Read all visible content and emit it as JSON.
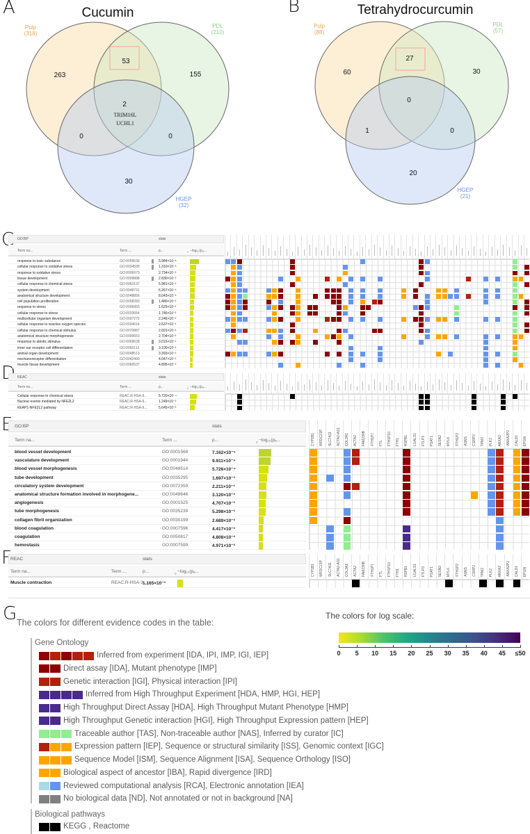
{
  "panel_labels": {
    "a": "A",
    "b": "B",
    "c": "C",
    "d": "D",
    "e": "E",
    "f": "F",
    "g": "G"
  },
  "venn_a": {
    "title": "Cucumin",
    "sets": {
      "pulp": "Pulp",
      "pulp_n": "(318)",
      "pdl": "PDL",
      "pdl_n": "(210)",
      "hgep": "HGEP",
      "hgep_n": "(32)"
    },
    "regions": {
      "pulp_only": "263",
      "pdl_only": "155",
      "hgep_only": "30",
      "pulp_pdl": "53",
      "pulp_hgep": "0",
      "pdl_hgep": "0",
      "all": "2"
    },
    "all_genes": [
      "TRIM16L",
      "UCHL1"
    ]
  },
  "venn_b": {
    "title": "Tetrahydrocurcumin",
    "sets": {
      "pulp": "Pulp",
      "pulp_n": "(88)",
      "pdl": "PDL",
      "pdl_n": "(57)",
      "hgep": "HGEP",
      "hgep_n": "(21)"
    },
    "regions": {
      "pulp_only": "60",
      "pdl_only": "30",
      "hgep_only": "20",
      "pulp_pdl": "27",
      "pulp_hgep": "1",
      "pdl_hgep": "0",
      "all": "0"
    }
  },
  "table_headers": {
    "term_name": "Term na...",
    "term_id": "Term ...",
    "p": "p...",
    "neglog": "−log₁₀(pₐ...",
    "stats": "stats",
    "zero": "0"
  },
  "colors": {
    "r": "#8b0000",
    "R": "#b3200e",
    "o": "#ffa500",
    "b": "#6495ed",
    "g": "#90ee90",
    "p": "#4a2a8c",
    "lb": "#add8e6",
    "gr": "#808080",
    "k": "#000000"
  },
  "panel_c": {
    "source": "GO:BP",
    "rows": [
      {
        "term": "response to toxic substance",
        "id": "GO:0009636",
        "p": "5.984×10⁻⁵",
        "pv": 5.984e-05,
        "marker": true,
        "cells": "0b 1b 2r 11r 23b 33r 34b 49g"
      },
      {
        "term": "cellular response to oxidative stress",
        "id": "GO:0034599",
        "p": "1.310×10⁻³",
        "pv": 0.00131,
        "marker": true,
        "cells": "1o 2b 11r 20b 33r 49g 51r"
      },
      {
        "term": "response to oxidative stress",
        "id": "GO:0006979",
        "p": "2.734×10⁻³",
        "pv": 0.002734,
        "marker": false,
        "cells": "1o 2b 11r 20o 33r 34b 49r 51r"
      },
      {
        "term": "tissue development",
        "id": "GO:0009888",
        "p": "2.830×10⁻³",
        "pv": 0.00283,
        "marker": true,
        "cells": "0r 1o 2b 9b 12o 17R 19o 21b 23b 26b 34b 41R 44b 46b 49o 50o"
      },
      {
        "term": "cellular response to chemical stress",
        "id": "GO:0062197",
        "p": "5.981×10⁻³",
        "pv": 0.005981,
        "marker": false,
        "cells": "1o 2b 11r 20b 33r 49g 51r"
      },
      {
        "term": "system development",
        "id": "GO:0048731",
        "p": "6.267×10⁻³",
        "pv": 0.006267,
        "marker": false,
        "cells": "0b 1o 2b 3b 7b 8o 9r 12o 17r 18r 19r 21b 23b 26b 30o 32r 36o 37o 39b 44b 46b 49g"
      },
      {
        "term": "anatomical structure development",
        "id": "GO:0048856",
        "p": "8.043×10⁻³",
        "pv": 0.008043,
        "marker": false,
        "cells": "0r 1o 2b 3g 7o 8o 9r 12o 15r 17r 18r 19r 21b 23b 26b 30o 32r 34b 36o 37o 38b 39b 41R 44b 46b 49g 50o"
      },
      {
        "term": "cell population proliferation",
        "id": "GO:0008283",
        "p": "1.480×10⁻²",
        "pv": 0.0148,
        "marker": true,
        "cells": "0r 1o 2b 3r 7r 9b 12o 18r 19r 21b 23o 25R 26r 34b 44b 49g 51r"
      },
      {
        "term": "response to stress",
        "id": "GO:0006950",
        "p": "1.629×10⁻²",
        "pv": 0.01629,
        "marker": false,
        "cells": "0r 1o 2b 3r 7b 8o 9r 11r 12o 14r 15r 19r 20o 23r 24r 32b 33r 34b 39g 49r 51r"
      },
      {
        "term": "cellular response to stress",
        "id": "GO:0033554",
        "p": "1.746×10⁻²",
        "pv": 0.01746,
        "marker": false,
        "cells": "1o 2b 8o 11r 12o 14r 15r 19r 20b 23r 33r 39g 49g 51r"
      },
      {
        "term": "multicellular organism development",
        "id": "GO:0007275",
        "p": "2.246×10⁻²",
        "pv": 0.02246,
        "marker": false,
        "cells": "0b 1o 2b 3b 7b 8o 9r 12o 17R 18r 19r 21b 23b 26b 30o 32r 33r 34b 36o 37o 39b 44b 46b 49g"
      },
      {
        "term": "cellular response to reactive oxygen species",
        "id": "GO:0034614",
        "p": "2.637×10⁻²",
        "pv": 0.02637,
        "marker": false,
        "cells": "1o 11r 33r 49g 51r"
      },
      {
        "term": "cellular response to chemical stimulus",
        "id": "GO:0070887",
        "p": "2.691×10⁻²",
        "pv": 0.02691,
        "marker": false,
        "cells": "0b 1r 2b 3R 7o 8o 9b 11r 15o 19r 20b 25r 26r 33r 34b 49g 51r"
      },
      {
        "term": "anatomical structure morphogenesis",
        "id": "GO:0009653",
        "p": "2.704×10⁻²",
        "pv": 0.02704,
        "marker": false,
        "cells": "1o 7b 9b 12o 17o 18r 19o 21b 30o 34b 36o 37o 39b 44b 46b 49o 50o"
      },
      {
        "term": "response to abiotic stimulus",
        "id": "GO:0009628",
        "p": "3.015×10⁻²",
        "pv": 0.03015,
        "marker": true,
        "cells": "2b 3b 8o 9r 11r 12o 15r 19r 33b 44b 49o"
      },
      {
        "term": "inner ear receptor cell differentiation",
        "id": "GO:0060113",
        "p": "3.100×10⁻²",
        "pv": 0.031,
        "marker": true,
        "cells": "21b 26b 44b 49o"
      },
      {
        "term": "animal organ development",
        "id": "GO:0048513",
        "p": "3.393×10⁻²",
        "pv": 0.03393,
        "marker": false,
        "cells": "0r 1o 2b 3b 7b 8o 9r 17r 19r 21b 23b 26b 36o 38b 44b 46b 49g"
      },
      {
        "term": "mechanoreceptor differentiation",
        "id": "GO:0042490",
        "p": "4.047×10⁻²",
        "pv": 0.04047,
        "marker": false,
        "cells": "21b 26b 44b 49o"
      },
      {
        "term": "muscle tissue development",
        "id": "GO:0060537",
        "p": "4.895×10⁻²",
        "pv": 0.04895,
        "marker": false,
        "cells": "9b 12o 19b 23b 44b 46b 50o"
      }
    ]
  },
  "panel_d": {
    "source": "REAC",
    "rows": [
      {
        "term": "Cellular response to chemical stress",
        "id": "REAC:R-HSA-9...",
        "p": "5.720×10⁻⁴",
        "pv": 0.000572,
        "cells": "2k 11k 33k 34k 42k 47k 49k"
      },
      {
        "term": "Nuclear events mediated by NFE2L2",
        "id": "REAC:R-HSA-9...",
        "p": "1.249×10⁻³",
        "pv": 0.001249,
        "cells": "2k 33k 34k 42k 47k"
      },
      {
        "term": "KEAP1-NFE2L2 pathway",
        "id": "REAC:R-HSA-9...",
        "p": "5.645×10⁻³",
        "pv": 0.005645,
        "cells": "2k 33k 34k 42k 47k"
      }
    ]
  },
  "genes_ef": [
    "CYP1B1",
    "WFDC21P",
    "SLC7A11",
    "ACTA2-AS1",
    "COL3A1",
    "ACTA2",
    "FAM230B",
    "FTH1P7",
    "FTL",
    "FTH1P10",
    "FTH1",
    "HSPB1",
    "LGALS1",
    "FTLP3",
    "PSAT1",
    "SESN2",
    "MYL6",
    "FTH1P2",
    "ASNS",
    "CSRP2",
    "TPM2",
    "PLK2",
    "ANXA2",
    "ANXA2P2",
    "CALD1",
    "EPGN"
  ],
  "panel_e": {
    "source": "GO:BP",
    "rows": [
      {
        "term": "blood vessel development",
        "id": "GO:0001568",
        "p": "7.162×10⁻⁵",
        "pv": 7.162e-05,
        "cells": "0o 4b 5R 11r 21b 22R 24o 25r"
      },
      {
        "term": "vasculature development",
        "id": "GO:0001944",
        "p": "9.911×10⁻⁵",
        "pv": 9.911e-05,
        "cells": "0o 4b 5R 11r 21b 22R 24o 25r"
      },
      {
        "term": "blood vessel morphogenesis",
        "id": "GO:0048514",
        "p": "5.726×10⁻⁴",
        "pv": 0.0005726,
        "cells": "0o 4b 11r 21b 22R 24o 25r"
      },
      {
        "term": "tube development",
        "id": "GO:0035295",
        "p": "1.697×10⁻³",
        "pv": 0.001697,
        "cells": "0o 2b 4b 11r 21b 22R 24o 25r"
      },
      {
        "term": "circulatory system development",
        "id": "GO:0072359",
        "p": "2.211×10⁻³",
        "pv": 0.002211,
        "cells": "0o 4r 5R 11r 21b 22R 24o 25r"
      },
      {
        "term": "anatomical structure formation involved in morphogene...",
        "id": "GO:0048646",
        "p": "3.120×10⁻³",
        "pv": 0.00312,
        "cells": "0o 4b 11r 19o 21b 22R 24o 25r"
      },
      {
        "term": "angiogenesis",
        "id": "GO:0001525",
        "p": "4.707×10⁻³",
        "pv": 0.004707,
        "cells": "0o 11r 21b 22R 24o 25r"
      },
      {
        "term": "tube morphogenesis",
        "id": "GO:0035239",
        "p": "5.298×10⁻³",
        "pv": 0.005298,
        "cells": "0o 4b 11r 21b 22R 24o 25r"
      },
      {
        "term": "collagen fibril organization",
        "id": "GO:0030199",
        "p": "2.689×10⁻²",
        "pv": 0.02689,
        "cells": "0o 4r 22b"
      },
      {
        "term": "blood coagulation",
        "id": "GO:0007596",
        "p": "4.417×10⁻²",
        "pv": 0.04417,
        "cells": "2b 4g 11p 22b"
      },
      {
        "term": "coagulation",
        "id": "GO:0050817",
        "p": "4.808×10⁻²",
        "pv": 0.04808,
        "cells": "2b 4g 11p 22b"
      },
      {
        "term": "hemostasis",
        "id": "GO:0007599",
        "p": "4.971×10⁻²",
        "pv": 0.04971,
        "cells": "2b 4g 11p 22b"
      }
    ]
  },
  "panel_f": {
    "source": "REAC",
    "rows": [
      {
        "term": "Muscle contraction",
        "id": "REAC:R-HSA-3...",
        "p": "1.165×10⁻³",
        "pv": 0.001165,
        "cells": "5k 16k 20k 22k 24k"
      }
    ]
  },
  "legend": {
    "title": "The colors for different evidence codes in the table:",
    "go_heading": "Gene Ontology",
    "items": [
      {
        "swatches": [
          "r",
          "R",
          "r",
          "R",
          "R"
        ],
        "label": "Inferred from experiment [IDA, IPI, IMP, IGI, IEP]"
      },
      {
        "swatches": [
          "r",
          "r"
        ],
        "label": "Direct assay [IDA], Mutant phenotype [IMP]"
      },
      {
        "swatches": [
          "R",
          "R"
        ],
        "label": "Genetic interaction [IGI], Physical interaction [IPI]"
      },
      {
        "swatches": [
          "p",
          "p",
          "p",
          "p"
        ],
        "label": "Inferred from High Throughput Experiment [HDA, HMP, HGI, HEP]"
      },
      {
        "swatches": [
          "p",
          "p"
        ],
        "label": "High Throughput Direct Assay [HDA], High Throughput Mutant Phenotype [HMP]"
      },
      {
        "swatches": [
          "p",
          "p"
        ],
        "label": "High Throughput Genetic interaction [HGI], High Throughput Expression pattern [HEP]"
      },
      {
        "swatches": [
          "g",
          "g",
          "g"
        ],
        "label": "Traceable author [TAS], Non-traceable author [NAS], Inferred by curator [IC]"
      },
      {
        "swatches": [
          "R",
          "o",
          "o"
        ],
        "label": "Expression pattern [IEP], Sequence or structural similarity [ISS], Genomic context [IGC]"
      },
      {
        "swatches": [
          "o",
          "o",
          "o"
        ],
        "label": "Sequence Model [ISM], Sequence Alignment [ISA], Sequence Orthology [ISO]"
      },
      {
        "swatches": [
          "o",
          "o"
        ],
        "label": "Biological aspect of ancestor [IBA], Rapid divergence [IRD]"
      },
      {
        "swatches": [
          "lb",
          "b"
        ],
        "label": "Reviewed computational analysis [RCA], Electronic annotation [IEA]"
      },
      {
        "swatches": [
          "gr",
          "gr"
        ],
        "label": "No biological data [ND], Not annotated or not in background [NA]"
      }
    ],
    "pathways_heading": "Biological pathways",
    "pathway_item": {
      "swatches": [
        "k",
        "k"
      ],
      "label": "KEGG , Reactome"
    }
  },
  "log_scale": {
    "title": "The colors for log scale:",
    "ticks": [
      "0",
      "5",
      "10",
      "15",
      "20",
      "25",
      "30",
      "35",
      "40",
      "45",
      "≤50"
    ],
    "range": [
      0,
      50
    ]
  }
}
